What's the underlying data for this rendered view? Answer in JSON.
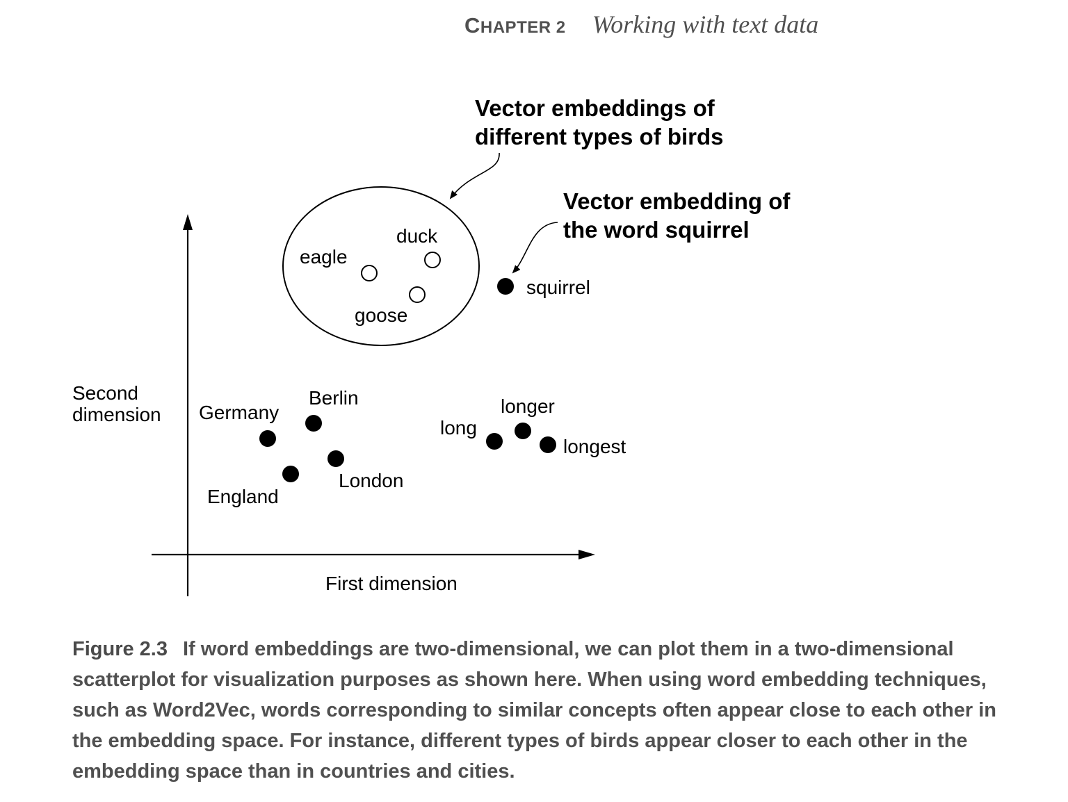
{
  "header": {
    "chapter_first": "C",
    "chapter_rest": "HAPTER 2",
    "title": "Working with text data"
  },
  "figure": {
    "callout_birds": [
      "Vector embeddings of",
      "different types of birds"
    ],
    "callout_squirrel": [
      "Vector embedding of",
      "the word squirrel"
    ],
    "axis_y_label": [
      "Second",
      "dimension"
    ],
    "axis_x_label": "First dimension",
    "points": [
      {
        "label": "eagle",
        "style": "hollow"
      },
      {
        "label": "duck",
        "style": "hollow"
      },
      {
        "label": "goose",
        "style": "hollow"
      },
      {
        "label": "squirrel",
        "style": "filled"
      },
      {
        "label": "Germany",
        "style": "filled"
      },
      {
        "label": "Berlin",
        "style": "filled"
      },
      {
        "label": "England",
        "style": "filled"
      },
      {
        "label": "London",
        "style": "filled"
      },
      {
        "label": "long",
        "style": "filled"
      },
      {
        "label": "longer",
        "style": "filled"
      },
      {
        "label": "longest",
        "style": "filled"
      }
    ]
  },
  "caption": {
    "label": "Figure 2.3",
    "text": "If word embeddings are two-dimensional, we can plot them in a two-dimensional scatterplot for visualization purposes as shown here. When using word embedding techniques, such as Word2Vec, words corresponding to similar concepts often appear close to each other in the embedding space. For instance, different types of birds appear closer to each other in the embedding space than in countries and cities."
  }
}
